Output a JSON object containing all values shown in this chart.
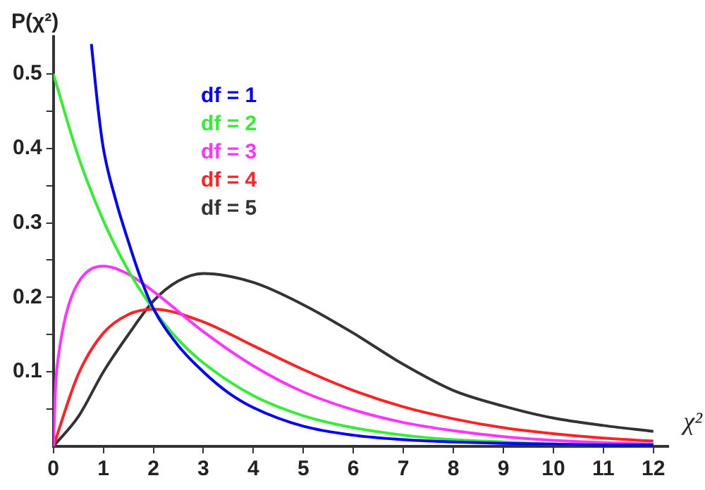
{
  "chart_data": {
    "type": "line",
    "title": "P(χ²)",
    "xlabel": "χ²",
    "xlim": [
      0,
      12.3
    ],
    "ylim": [
      0,
      0.55
    ],
    "xticks": [
      0,
      1,
      2,
      3,
      4,
      5,
      6,
      7,
      8,
      9,
      10,
      11,
      12
    ],
    "yticks": [
      {
        "value": 0.05,
        "label": null
      },
      0.1,
      {
        "value": 0.15,
        "label": null
      },
      0.2,
      {
        "value": 0.25,
        "label": null
      },
      0.3,
      {
        "value": 0.35,
        "label": null
      },
      0.4,
      {
        "value": 0.45,
        "label": null
      },
      0.5
    ],
    "grid": false,
    "legend": "top",
    "marker": "none",
    "line_style": "solid",
    "series": [
      {
        "name": "df = 1",
        "color": "#0000ff",
        "x": [
          0.76,
          0.9,
          1,
          1.25,
          1.5,
          1.75,
          2,
          2.5,
          3,
          3.5,
          4,
          5,
          6,
          7,
          8,
          9,
          10,
          11,
          12
        ],
        "values": [
          0.54,
          0.45,
          0.4,
          0.33,
          0.275,
          0.225,
          0.185,
          0.135,
          0.1,
          0.072,
          0.052,
          0.027,
          0.015,
          0.009,
          0.006,
          0.004,
          0.003,
          0.002,
          0.002
        ]
      },
      {
        "name": "df = 2",
        "color": "#33ee33",
        "x": [
          0,
          0.5,
          1,
          1.5,
          2,
          2.5,
          3,
          4,
          5,
          6,
          7,
          8,
          9,
          10,
          11,
          12
        ],
        "values": [
          0.5,
          0.389,
          0.303,
          0.236,
          0.184,
          0.143,
          0.112,
          0.068,
          0.041,
          0.025,
          0.015,
          0.009,
          0.006,
          0.003,
          0.002,
          0.001
        ]
      },
      {
        "name": "df = 3",
        "color": "#ff33ff",
        "x": [
          0,
          0.05,
          0.1,
          0.25,
          0.5,
          1,
          1.5,
          2,
          3,
          4,
          5,
          6,
          7,
          8,
          9,
          10,
          11,
          12
        ],
        "values": [
          0,
          0.087,
          0.12,
          0.176,
          0.22,
          0.242,
          0.231,
          0.208,
          0.154,
          0.108,
          0.073,
          0.049,
          0.032,
          0.021,
          0.013,
          0.008,
          0.005,
          0.003
        ]
      },
      {
        "name": "df = 4",
        "color": "#ff2222",
        "x": [
          0,
          0.5,
          1,
          1.5,
          2,
          3,
          4,
          5,
          6,
          7,
          8,
          9,
          10,
          11,
          12
        ],
        "values": [
          0,
          0.097,
          0.152,
          0.177,
          0.184,
          0.167,
          0.135,
          0.103,
          0.075,
          0.053,
          0.037,
          0.025,
          0.017,
          0.011,
          0.007
        ]
      },
      {
        "name": "df = 5",
        "color": "#333333",
        "x": [
          0,
          0.5,
          1,
          1.5,
          2,
          2.5,
          3,
          4,
          5,
          6,
          7,
          8,
          9,
          10,
          11,
          12
        ],
        "values": [
          0,
          0.04,
          0.1,
          0.15,
          0.195,
          0.222,
          0.232,
          0.22,
          0.19,
          0.152,
          0.11,
          0.075,
          0.054,
          0.038,
          0.028,
          0.02
        ]
      }
    ]
  }
}
